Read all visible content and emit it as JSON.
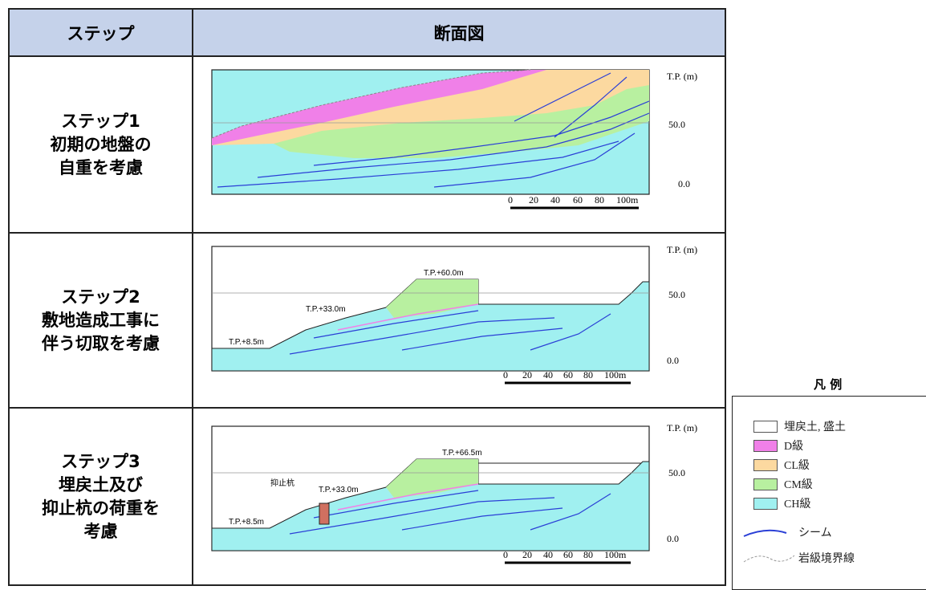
{
  "header": {
    "step_col": "ステップ",
    "section_col": "断面図"
  },
  "rows": [
    {
      "lines": [
        "ステップ1",
        "初期の地盤の",
        "自重を考慮"
      ]
    },
    {
      "lines": [
        "ステップ2",
        "敷地造成工事に",
        "伴う切取を考慮"
      ]
    },
    {
      "lines": [
        "ステップ3",
        "埋戻土及び",
        "抑止杭の荷重を",
        "考慮"
      ]
    }
  ],
  "axis": {
    "unit": "T.P. (m)",
    "upper": "50.0",
    "lower": "0.0"
  },
  "scale": {
    "ticks": [
      "0",
      "20",
      "40",
      "60",
      "80",
      "100m"
    ]
  },
  "step2_labels": {
    "top": "T.P.+60.0m",
    "mid": "T.P.+33.0m",
    "low": "T.P.+8.5m"
  },
  "step3_labels": {
    "top": "T.P.+66.5m",
    "pile": "抑止杭",
    "mid": "T.P.+33.0m",
    "low": "T.P.+8.5m"
  },
  "legend": {
    "title": "凡 例",
    "items": [
      {
        "label": "埋戻土, 盛土",
        "color": "#ffffff"
      },
      {
        "label": "D級",
        "color": "#f080e8"
      },
      {
        "label": "CL級",
        "color": "#fcd9a0"
      },
      {
        "label": "CM級",
        "color": "#b8f0a0"
      },
      {
        "label": "CH級",
        "color": "#a0f0f0"
      }
    ],
    "seam": "シーム",
    "boundary": "岩級境界線"
  },
  "colors": {
    "D": "#f080e8",
    "CL": "#fcd9a0",
    "CM": "#b8f0a0",
    "CH": "#a0f0f0",
    "seam": "#2a3fd6",
    "header": "#c5d2ea"
  }
}
